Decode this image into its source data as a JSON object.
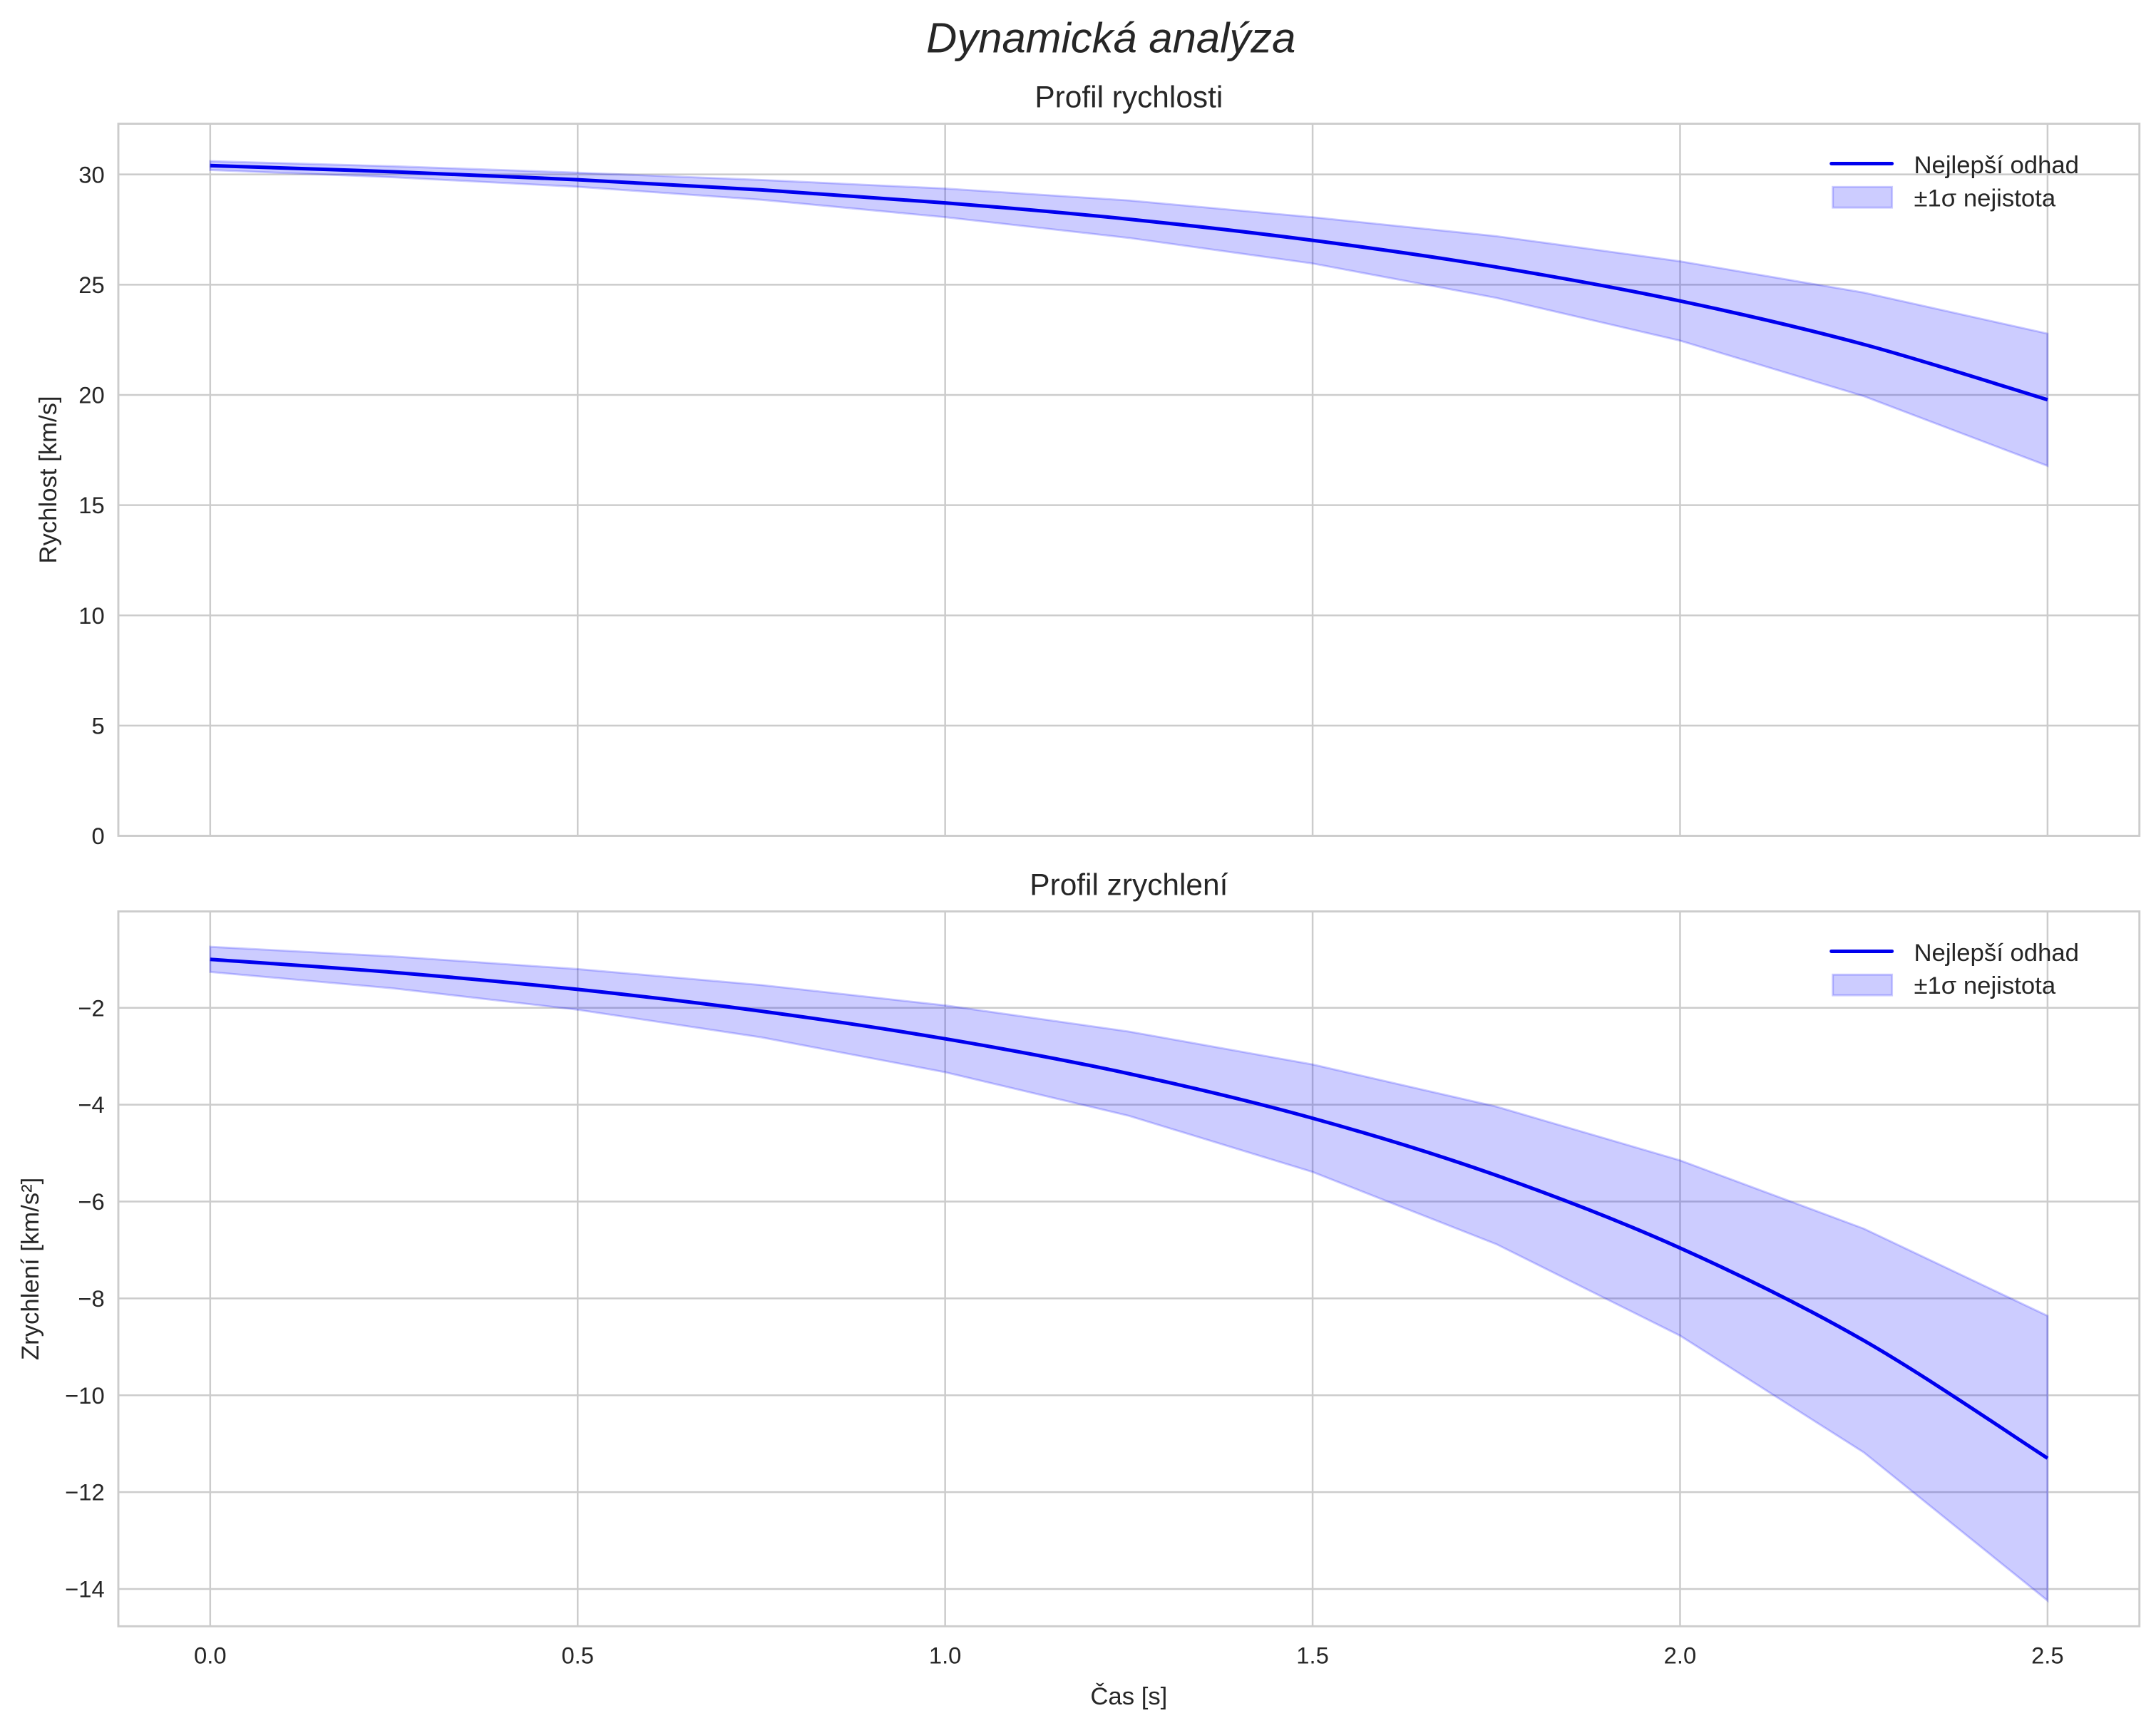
{
  "title": "Dynamická analýza",
  "colors": {
    "line": "#0000ee",
    "band": "#0000ff",
    "grid": "#cccccc",
    "spine": "#cccccc"
  },
  "chart_data": [
    {
      "type": "line",
      "title": "Profil rychlosti",
      "xlabel": "",
      "ylabel": "Rychlost [km/s]",
      "xlim": [
        -0.125,
        2.625
      ],
      "ylim": [
        0,
        32.3
      ],
      "xticks": [
        "0.0",
        "0.5",
        "1.0",
        "1.5",
        "2.0",
        "2.5"
      ],
      "xtick_values": [
        0,
        0.5,
        1,
        1.5,
        2,
        2.5
      ],
      "yticks": [
        "0",
        "5",
        "10",
        "15",
        "20",
        "25",
        "30"
      ],
      "ytick_values": [
        0,
        5,
        10,
        15,
        20,
        25,
        30
      ],
      "show_xtick_labels": false,
      "grid": true,
      "legend": {
        "position": "top-right",
        "entries": [
          "Nejlepší odhad",
          "±1σ nejistota"
        ]
      },
      "x": [
        0,
        0.25,
        0.5,
        0.75,
        1,
        1.25,
        1.5,
        1.75,
        2,
        2.25,
        2.5
      ],
      "series": [
        {
          "name": "Nejlepší odhad",
          "values": [
            30.4,
            30.12,
            29.76,
            29.3,
            28.71,
            27.97,
            27.01,
            25.8,
            24.26,
            22.29,
            19.78
          ]
        }
      ],
      "band": {
        "name": "±1σ nejistota",
        "sigma": [
          0.2,
          0.25,
          0.32,
          0.45,
          0.65,
          0.85,
          1.05,
          1.4,
          1.8,
          2.35,
          3.0
        ]
      }
    },
    {
      "type": "line",
      "title": "Profil zrychlení",
      "xlabel": "Čas [s]",
      "ylabel": "Zrychlení [km/s²]",
      "xlim": [
        -0.125,
        2.625
      ],
      "ylim": [
        -14.77,
        -0.01
      ],
      "xticks": [
        "0.0",
        "0.5",
        "1.0",
        "1.5",
        "2.0",
        "2.5"
      ],
      "xtick_values": [
        0,
        0.5,
        1,
        1.5,
        2,
        2.5
      ],
      "yticks": [
        "−14",
        "−12",
        "−10",
        "−8",
        "−6",
        "−4",
        "−2"
      ],
      "ytick_values": [
        -14,
        -12,
        -10,
        -8,
        -6,
        -4,
        -2
      ],
      "show_xtick_labels": true,
      "grid": true,
      "legend": {
        "position": "top-right",
        "entries": [
          "Nejlepší odhad",
          "±1σ nejistota"
        ]
      },
      "x": [
        0,
        0.25,
        0.5,
        0.75,
        1,
        1.25,
        1.5,
        1.75,
        2,
        2.25,
        2.5
      ],
      "series": [
        {
          "name": "Nejlepší odhad",
          "values": [
            -1.0,
            -1.27,
            -1.62,
            -2.07,
            -2.64,
            -3.36,
            -4.28,
            -5.46,
            -6.96,
            -8.87,
            -11.3
          ]
        }
      ],
      "band": {
        "name": "±1σ nejistota",
        "sigma": [
          0.26,
          0.33,
          0.42,
          0.54,
          0.69,
          0.87,
          1.11,
          1.42,
          1.81,
          2.31,
          2.94
        ]
      }
    }
  ]
}
